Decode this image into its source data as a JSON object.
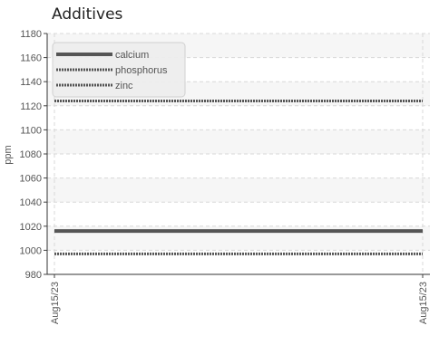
{
  "chart_data": {
    "type": "line",
    "title": "Additives",
    "xlabel": "",
    "ylabel": "ppm",
    "categories": [
      "Aug15/23",
      "Aug15/23"
    ],
    "ylim": [
      980,
      1180
    ],
    "yticks": [
      980,
      1000,
      1020,
      1040,
      1060,
      1080,
      1100,
      1120,
      1140,
      1160,
      1180
    ],
    "grid": true,
    "legend_position": "top-left",
    "series": [
      {
        "name": "calcium",
        "values": [
          1016,
          1016
        ],
        "color": "#555555",
        "style": "solid"
      },
      {
        "name": "phosphorus",
        "values": [
          997,
          997
        ],
        "color": "#555555",
        "style": "dotted"
      },
      {
        "name": "zinc",
        "values": [
          1124,
          1124
        ],
        "color": "#555555",
        "style": "dotted"
      }
    ]
  }
}
